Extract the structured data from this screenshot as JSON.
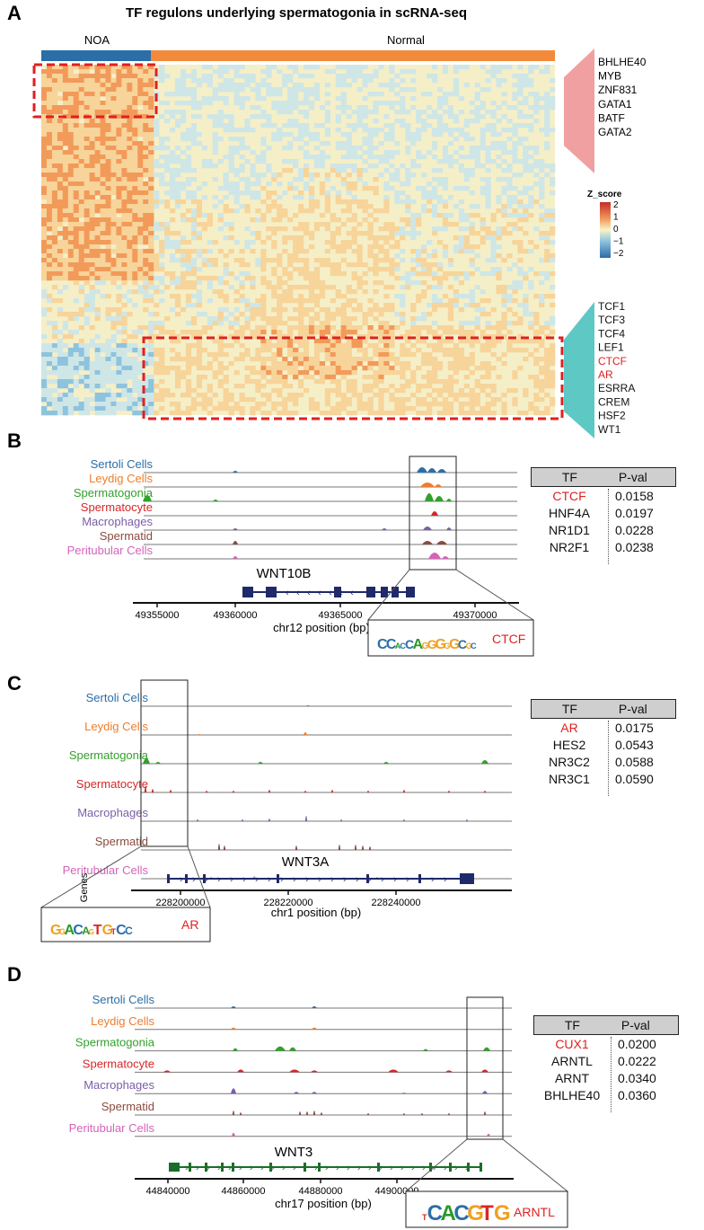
{
  "figure_title": "TF regulons underlying spermatogonia in scRNA-seq",
  "panelA": {
    "letter": "A",
    "groups": [
      "NOA",
      "Normal"
    ],
    "top_tfs": [
      "BHLHE40",
      "MYB",
      "ZNF831",
      "GATA1",
      "BATF",
      "GATA2"
    ],
    "bottom_tfs": [
      {
        "name": "TCF1",
        "highlight": false
      },
      {
        "name": "TCF3",
        "highlight": false
      },
      {
        "name": "TCF4",
        "highlight": false
      },
      {
        "name": "LEF1",
        "highlight": false
      },
      {
        "name": "CTCF",
        "highlight": true
      },
      {
        "name": "AR",
        "highlight": true
      },
      {
        "name": "ESRRA",
        "highlight": false
      },
      {
        "name": "CREM",
        "highlight": false
      },
      {
        "name": "HSF2",
        "highlight": false
      },
      {
        "name": "WT1",
        "highlight": false
      }
    ],
    "legend_title": "Z_score",
    "legend_ticks": [
      "2",
      "1",
      "0",
      "−1",
      "−2"
    ]
  },
  "cell_types": [
    {
      "name": "Sertoli Cells",
      "color": "#2b6ea8"
    },
    {
      "name": "Leydig Cells",
      "color": "#ee7d2c"
    },
    {
      "name": "Spermatogonia",
      "color": "#33a02c"
    },
    {
      "name": "Spermatocyte",
      "color": "#d62728"
    },
    {
      "name": "Macrophages",
      "color": "#7b5ea7"
    },
    {
      "name": "Spermatid",
      "color": "#8c4a3f"
    },
    {
      "name": "Peritubular Cells",
      "color": "#d464b8"
    }
  ],
  "panelB": {
    "letter": "B",
    "gene": "WNT10B",
    "xlabel": "chr12 position (bp)",
    "ticks": [
      "49355000",
      "49360000",
      "49365000",
      "49370000"
    ],
    "motif_tf": "CTCF",
    "motif_seq": "CCACCAGGGGGCGC",
    "table": {
      "header": [
        "TF",
        "P-val"
      ],
      "rows": [
        [
          "CTCF",
          "0.0158"
        ],
        [
          "HNF4A",
          "0.0197"
        ],
        [
          "NR1D1",
          "0.0228"
        ],
        [
          "NR2F1",
          "0.0238"
        ]
      ]
    }
  },
  "panelC": {
    "letter": "C",
    "gene": "WNT3A",
    "genes_label": "Genes",
    "xlabel": "chr1 position (bp)",
    "ticks": [
      "228200000",
      "228220000",
      "228240000"
    ],
    "motif_tf": "AR",
    "motif_seq": "GGACAGTGTCC",
    "table": {
      "header": [
        "TF",
        "P-val"
      ],
      "rows": [
        [
          "AR",
          "0.0175"
        ],
        [
          "HES2",
          "0.0543"
        ],
        [
          "NR3C2",
          "0.0588"
        ],
        [
          "NR3C1",
          "0.0590"
        ]
      ]
    }
  },
  "panelD": {
    "letter": "D",
    "gene": "WNT3",
    "xlabel": "chr17 position (bp)",
    "ticks": [
      "44840000",
      "44860000",
      "44880000",
      "44900000"
    ],
    "motif_tf": "ARNTL",
    "motif_seq": "TCACGTG",
    "table": {
      "header": [
        "TF",
        "P-val"
      ],
      "rows": [
        [
          "CUX1",
          "0.0200"
        ],
        [
          "ARNTL",
          "0.0222"
        ],
        [
          "ARNT",
          "0.0340"
        ],
        [
          "BHLHE40",
          "0.0360"
        ]
      ]
    }
  },
  "colors": {
    "noa": "#2b6ea8",
    "normal": "#f28a3b",
    "highlight": "#e02020",
    "pink_tri": "#f0a0a0",
    "teal_tri": "#5ec8c4",
    "gene_navy": "#1f2a6b",
    "gene_green": "#1b6e2a"
  }
}
